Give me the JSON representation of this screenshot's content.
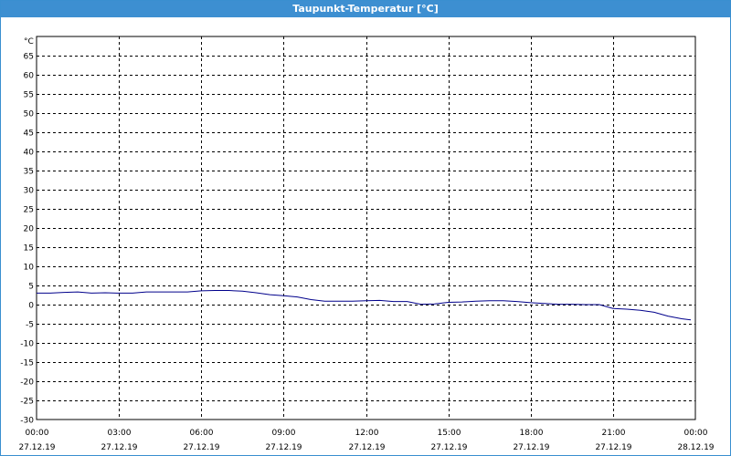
{
  "window": {
    "title": "Taupunkt-Temperatur [°C]"
  },
  "chart_data": {
    "type": "line",
    "title": "Taupunkt-Temperatur [°C]",
    "ylabel": "°C",
    "xlabel": "",
    "ylim": [
      -30,
      65
    ],
    "y_ticks": [
      65,
      60,
      55,
      50,
      45,
      40,
      35,
      30,
      25,
      20,
      15,
      10,
      5,
      0,
      -5,
      -10,
      -15,
      -20,
      -25,
      -30
    ],
    "xlim": [
      "27.12.19 00:00",
      "28.12.19 00:00"
    ],
    "x_ticks": [
      {
        "time": "00:00",
        "date": "27.12.19"
      },
      {
        "time": "03:00",
        "date": "27.12.19"
      },
      {
        "time": "06:00",
        "date": "27.12.19"
      },
      {
        "time": "09:00",
        "date": "27.12.19"
      },
      {
        "time": "12:00",
        "date": "27.12.19"
      },
      {
        "time": "15:00",
        "date": "27.12.19"
      },
      {
        "time": "18:00",
        "date": "27.12.19"
      },
      {
        "time": "21:00",
        "date": "27.12.19"
      },
      {
        "time": "00:00",
        "date": "28.12.19"
      }
    ],
    "grid": true,
    "series": [
      {
        "color": "#00008b",
        "x": [
          "27.12.19 00:00",
          "27.12.19 00:30",
          "27.12.19 01:00",
          "27.12.19 01:30",
          "27.12.19 02:00",
          "27.12.19 02:30",
          "27.12.19 03:00",
          "27.12.19 03:30",
          "27.12.19 04:00",
          "27.12.19 04:30",
          "27.12.19 05:00",
          "27.12.19 05:30",
          "27.12.19 06:00",
          "27.12.19 06:30",
          "27.12.19 07:00",
          "27.12.19 07:30",
          "27.12.19 08:00",
          "27.12.19 08:30",
          "27.12.19 09:00",
          "27.12.19 09:30",
          "27.12.19 10:00",
          "27.12.19 10:30",
          "27.12.19 11:00",
          "27.12.19 11:30",
          "27.12.19 12:00",
          "27.12.19 12:30",
          "27.12.19 13:00",
          "27.12.19 13:30",
          "27.12.19 14:00",
          "27.12.19 14:30",
          "27.12.19 15:00",
          "27.12.19 15:30",
          "27.12.19 16:00",
          "27.12.19 16:30",
          "27.12.19 17:00",
          "27.12.19 17:30",
          "27.12.19 18:00",
          "27.12.19 18:30",
          "27.12.19 19:00",
          "27.12.19 19:30",
          "27.12.19 20:00",
          "27.12.19 20:30",
          "27.12.19 21:00",
          "27.12.19 21:30",
          "27.12.19 22:00",
          "27.12.19 22:30",
          "27.12.19 23:00",
          "27.12.19 23:30",
          "27.12.19 23:50"
        ],
        "values": [
          3.0,
          3.0,
          3.2,
          3.3,
          3.0,
          3.1,
          3.0,
          3.0,
          3.3,
          3.3,
          3.3,
          3.3,
          3.6,
          3.7,
          3.7,
          3.5,
          3.1,
          2.6,
          2.3,
          2.0,
          1.3,
          0.9,
          0.9,
          0.9,
          1.0,
          1.1,
          0.8,
          0.8,
          0.1,
          0.2,
          0.6,
          0.7,
          0.9,
          1.0,
          1.0,
          0.8,
          0.5,
          0.3,
          0.1,
          0.1,
          0.0,
          0.0,
          -1.0,
          -1.2,
          -1.5,
          -2.0,
          -3.0,
          -3.7,
          -4.0
        ]
      }
    ]
  }
}
